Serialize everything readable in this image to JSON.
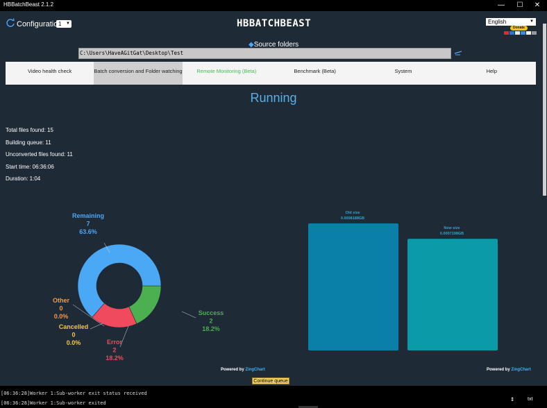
{
  "window": {
    "title": "HBBatchBeast 2.1.2",
    "minimize": "—",
    "maximize": "☐",
    "close": "✕"
  },
  "header": {
    "config_label": "Configuration",
    "config_value": "1",
    "logo": "HBBATCHBEAST",
    "language": "English",
    "donate": "Donate"
  },
  "source": {
    "label": "Source folders",
    "path": "C:\\Users\\HaveAGitGat\\Desktop\\Test"
  },
  "tabs": [
    {
      "label": "Video health check"
    },
    {
      "label": "Batch conversion and Folder watching"
    },
    {
      "label": "Remote Monitoring (Beta)"
    },
    {
      "label": "Benchmark (Beta)"
    },
    {
      "label": "System"
    },
    {
      "label": "Help"
    }
  ],
  "status": "Running",
  "stats": {
    "total": "Total files found: 15",
    "building": "Building queue: 11",
    "unconverted": "Unconverted files found: 11",
    "start": "Start time: 06:36:06",
    "duration": "Duration: 1:04"
  },
  "chart_data": [
    {
      "type": "pie",
      "title": "",
      "colors": {
        "Remaining": "#4aa8f5",
        "Success": "#4caf50",
        "Error": "#f04a5e",
        "Cancelled": "#f5c842",
        "Other": "#f59a42"
      },
      "slices": [
        {
          "label": "Remaining",
          "value": 7,
          "percent": "63.6%"
        },
        {
          "label": "Success",
          "value": 2,
          "percent": "18.2%"
        },
        {
          "label": "Error",
          "value": 2,
          "percent": "18.2%"
        },
        {
          "label": "Cancelled",
          "value": 0,
          "percent": "0.0%"
        },
        {
          "label": "Other",
          "value": 0,
          "percent": "0.0%"
        }
      ]
    },
    {
      "type": "bar",
      "title": "",
      "categories": [
        "Old size",
        "New size"
      ],
      "values": [
        0.0008188,
        0.0007198
      ],
      "value_labels": [
        "0.0008188GB",
        "0.0007198GB"
      ],
      "colors": [
        "#0a7fa8",
        "#0a9aa8"
      ]
    }
  ],
  "powered_by": {
    "prefix": "Powered by",
    "brand": "ZingChart"
  },
  "continue_label": "Continue queue",
  "log": {
    "line1": "[06:36:28]Worker 1:Sub-worker exit status received",
    "line2": "[06:36:28]Worker 1:Sub-worker exited",
    "txt": "txt",
    "scroll_icon": "↕"
  }
}
